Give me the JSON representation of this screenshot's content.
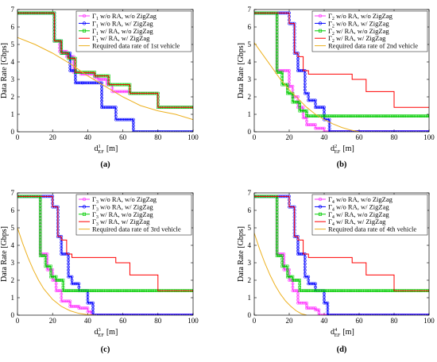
{
  "chart_data": [
    {
      "type": "line",
      "caption": "(a)",
      "xlabel_main": "d",
      "xlabel_sup": "1",
      "xlabel_sub": "EF",
      "xlabel_unit": "[m]",
      "ylabel": "Data Rate [Gbps]",
      "xlim": [
        0,
        100
      ],
      "ylim": [
        0,
        7
      ],
      "xticks": [
        0,
        20,
        40,
        60,
        80,
        100
      ],
      "yticks": [
        0,
        1,
        2,
        3,
        4,
        5,
        6,
        7
      ],
      "legend_position": "top-right",
      "series": [
        {
          "name": "Γ1 w/o RA, w/o ZigZag",
          "legend_base": "Γ",
          "legend_sub": "1",
          "legend_rest": " w/o RA, w/o ZigZag",
          "color": "#ff33ff",
          "marker": "circle",
          "x": [
            0,
            21,
            21,
            24,
            24,
            28,
            28,
            32,
            32,
            36,
            36,
            44,
            44,
            46,
            46,
            51,
            51,
            54,
            54,
            64,
            64,
            80,
            80,
            100
          ],
          "y": [
            6.8,
            6.8,
            5.2,
            5.2,
            4.6,
            4.6,
            4.3,
            4.3,
            3.4,
            3.4,
            3.3,
            3.3,
            3.1,
            3.1,
            3.0,
            3.0,
            2.7,
            2.7,
            2.3,
            2.3,
            2.2,
            2.2,
            1.4,
            1.4
          ]
        },
        {
          "name": "Γ1 w/o RA, w/ ZigZag",
          "legend_base": "Γ",
          "legend_sub": "1",
          "legend_rest": " w/o RA, w/ ZigZag",
          "color": "#0000ff",
          "marker": "circle",
          "x": [
            0,
            21,
            21,
            25,
            25,
            30,
            30,
            33,
            33,
            37,
            37,
            48,
            48,
            56,
            56,
            66,
            66,
            100
          ],
          "y": [
            6.8,
            6.8,
            5.2,
            5.2,
            4.5,
            4.5,
            3.5,
            3.5,
            2.8,
            2.8,
            2.8,
            2.8,
            1.4,
            1.4,
            0.7,
            0.7,
            0,
            0
          ]
        },
        {
          "name": "Γ1 w/ RA, w/o ZigZag",
          "legend_base": "Γ",
          "legend_sub": "1",
          "legend_rest": " w/ RA, w/o ZigZag",
          "color": "#00cc00",
          "marker": "square",
          "x": [
            0,
            21,
            21,
            25,
            25,
            29,
            29,
            33,
            33,
            44,
            44,
            52,
            52,
            64,
            64,
            80,
            80,
            100
          ],
          "y": [
            6.8,
            6.8,
            5.2,
            5.2,
            4.5,
            4.5,
            4.2,
            4.2,
            3.4,
            3.4,
            3.2,
            3.2,
            2.7,
            2.7,
            2.2,
            2.2,
            1.4,
            1.4
          ]
        },
        {
          "name": "Γ1 w/ RA, w/ ZigZag",
          "legend_base": "Γ",
          "legend_sub": "1",
          "legend_rest": " w/ RA, w/ ZigZag",
          "color": "#ff0000",
          "marker": "none",
          "x": [
            0,
            21,
            21,
            25,
            25,
            29,
            29,
            33,
            33,
            44,
            44,
            52,
            52,
            64,
            64,
            80,
            80,
            100
          ],
          "y": [
            6.8,
            6.8,
            5.2,
            5.2,
            4.5,
            4.5,
            4.2,
            4.2,
            3.4,
            3.4,
            3.2,
            3.2,
            2.7,
            2.7,
            2.2,
            2.2,
            1.4,
            1.4
          ]
        },
        {
          "name": "Required data rate of 1st vehicle",
          "legend_base": "Required data rate of 1st vehicle",
          "legend_sub": "",
          "legend_rest": "",
          "color": "#edb120",
          "marker": "none",
          "x": [
            0,
            10,
            20,
            30,
            40,
            50,
            60,
            70,
            80,
            90,
            100
          ],
          "y": [
            5.4,
            5.0,
            4.5,
            3.9,
            3.2,
            2.6,
            2.0,
            1.5,
            1.2,
            1.0,
            0.7
          ]
        }
      ]
    },
    {
      "type": "line",
      "caption": "(b)",
      "xlabel_main": "d",
      "xlabel_sup": "2",
      "xlabel_sub": "EF",
      "xlabel_unit": "[m]",
      "ylabel": "Data Rate [Gbps]",
      "xlim": [
        0,
        100
      ],
      "ylim": [
        0,
        7
      ],
      "xticks": [
        0,
        20,
        40,
        60,
        80,
        100
      ],
      "yticks": [
        0,
        1,
        2,
        3,
        4,
        5,
        6,
        7
      ],
      "legend_position": "top-right",
      "series": [
        {
          "name": "Γ2 w/o RA, w/o ZigZag",
          "legend_base": "Γ",
          "legend_sub": "2",
          "legend_rest": " w/o RA, w/o ZigZag",
          "color": "#ff33ff",
          "marker": "circle",
          "x": [
            0,
            13,
            13,
            20,
            20,
            22,
            22,
            25,
            25,
            28,
            28,
            30,
            30,
            35,
            35,
            40,
            40,
            100
          ],
          "y": [
            6.8,
            6.8,
            3.5,
            3.5,
            2.6,
            2.6,
            2.0,
            2.0,
            1.4,
            1.4,
            0.8,
            0.8,
            0.4,
            0.4,
            0.2,
            0.2,
            0,
            0
          ]
        },
        {
          "name": "Γ2 w/o RA, w/ ZigZag",
          "legend_base": "Γ",
          "legend_sub": "2",
          "legend_rest": " w/o RA, w/ ZigZag",
          "color": "#0000ff",
          "marker": "circle",
          "x": [
            0,
            20,
            20,
            23,
            23,
            25,
            25,
            29,
            29,
            31,
            31,
            35,
            35,
            40,
            40,
            43,
            43,
            100
          ],
          "y": [
            6.8,
            6.8,
            6.2,
            6.2,
            4.5,
            4.5,
            3.5,
            3.5,
            2.2,
            2.2,
            1.8,
            1.8,
            1.4,
            1.4,
            0.7,
            0.7,
            0,
            0
          ]
        },
        {
          "name": "Γ2 w/ RA, w/o ZigZag",
          "legend_base": "Γ",
          "legend_sub": "2",
          "legend_rest": " w/ RA, w/o ZigZag",
          "color": "#00cc00",
          "marker": "square",
          "x": [
            0,
            13,
            13,
            16,
            16,
            19,
            19,
            22,
            22,
            26,
            26,
            30,
            30,
            100
          ],
          "y": [
            6.8,
            6.8,
            3.4,
            3.4,
            2.7,
            2.7,
            2.2,
            2.2,
            1.7,
            1.7,
            1.2,
            1.2,
            0.9,
            0.9
          ]
        },
        {
          "name": "Γ2 w/ RA, w/ ZigZag",
          "legend_base": "Γ",
          "legend_sub": "2",
          "legend_rest": " w/ RA, w/ ZigZag",
          "color": "#ff0000",
          "marker": "none",
          "x": [
            0,
            20,
            20,
            23,
            23,
            25,
            25,
            28,
            28,
            31,
            31,
            56,
            56,
            64,
            64,
            80,
            80,
            100
          ],
          "y": [
            6.8,
            6.8,
            6.2,
            6.2,
            4.5,
            4.5,
            4.3,
            4.3,
            3.5,
            3.5,
            3.3,
            3.3,
            3.0,
            3.0,
            2.3,
            2.3,
            1.4,
            1.4
          ]
        },
        {
          "name": "Required data rate of 2nd vehicle",
          "legend_base": "Required data rate of 2nd vehicle",
          "legend_sub": "",
          "legend_rest": "",
          "color": "#edb120",
          "marker": "none",
          "x": [
            0,
            5,
            10,
            15,
            20,
            25,
            30,
            35,
            40,
            45,
            50,
            55,
            60
          ],
          "y": [
            5.1,
            4.4,
            3.7,
            3.0,
            2.4,
            1.9,
            1.4,
            1.0,
            0.7,
            0.45,
            0.25,
            0.1,
            0
          ]
        }
      ]
    },
    {
      "type": "line",
      "caption": "(c)",
      "xlabel_main": "d",
      "xlabel_sup": "3",
      "xlabel_sub": "EF",
      "xlabel_unit": "[m]",
      "ylabel": "Data Rate [Gbps]",
      "xlim": [
        0,
        100
      ],
      "ylim": [
        0,
        7
      ],
      "xticks": [
        0,
        20,
        40,
        60,
        80,
        100
      ],
      "yticks": [
        0,
        1,
        2,
        3,
        4,
        5,
        6,
        7
      ],
      "legend_position": "top-right",
      "series": [
        {
          "name": "Γ3 w/o RA, w/o ZigZag",
          "legend_base": "Γ",
          "legend_sub": "3",
          "legend_rest": " w/o RA, w/o ZigZag",
          "color": "#ff33ff",
          "marker": "circle",
          "x": [
            0,
            13,
            13,
            17,
            17,
            20,
            20,
            22,
            22,
            25,
            25,
            30,
            30,
            35,
            35,
            40,
            40,
            42,
            42,
            100
          ],
          "y": [
            6.8,
            6.8,
            3.5,
            3.5,
            2.6,
            2.6,
            2.0,
            2.0,
            1.4,
            1.4,
            0.8,
            0.8,
            0.5,
            0.5,
            0.4,
            0.4,
            0.2,
            0.2,
            0,
            0
          ]
        },
        {
          "name": "Γ3 w/o RA, w/ ZigZag",
          "legend_base": "Γ",
          "legend_sub": "3",
          "legend_rest": " w/o RA, w/ ZigZag",
          "color": "#0000ff",
          "marker": "circle",
          "x": [
            0,
            20,
            20,
            23,
            23,
            25,
            25,
            29,
            29,
            31,
            31,
            35,
            35,
            40,
            40,
            43,
            43,
            100
          ],
          "y": [
            6.8,
            6.8,
            6.2,
            6.2,
            4.5,
            4.5,
            3.5,
            3.5,
            2.2,
            2.2,
            1.8,
            1.8,
            1.4,
            1.4,
            0.7,
            0.7,
            0,
            0
          ]
        },
        {
          "name": "Γ3 w/ RA, w/o ZigZag",
          "legend_base": "Γ",
          "legend_sub": "3",
          "legend_rest": " w/ RA, w/o ZigZag",
          "color": "#00cc00",
          "marker": "square",
          "x": [
            0,
            13,
            13,
            16,
            16,
            19,
            19,
            22,
            22,
            26,
            26,
            100
          ],
          "y": [
            6.8,
            6.8,
            3.4,
            3.4,
            2.8,
            2.8,
            2.2,
            2.2,
            2.0,
            2.0,
            1.4,
            1.4
          ]
        },
        {
          "name": "Γ3 w/ RA, w/ ZigZag",
          "legend_base": "Γ",
          "legend_sub": "3",
          "legend_rest": " w/ RA, w/ ZigZag",
          "color": "#ff0000",
          "marker": "none",
          "x": [
            0,
            20,
            20,
            23,
            23,
            25,
            25,
            28,
            28,
            31,
            31,
            56,
            56,
            64,
            64,
            80,
            80,
            100
          ],
          "y": [
            6.8,
            6.8,
            6.2,
            6.2,
            4.5,
            4.5,
            4.3,
            4.3,
            3.5,
            3.5,
            3.3,
            3.3,
            3.0,
            3.0,
            2.3,
            2.3,
            1.4,
            1.4
          ]
        },
        {
          "name": "Required data rate of 3rd vehicle",
          "legend_base": "Required data rate of 3rd vehicle",
          "legend_sub": "",
          "legend_rest": "",
          "color": "#edb120",
          "marker": "none",
          "x": [
            0,
            3,
            6,
            9,
            12,
            15,
            20,
            25,
            30,
            35,
            40,
            45
          ],
          "y": [
            5.0,
            4.1,
            3.3,
            2.6,
            2.0,
            1.5,
            0.9,
            0.5,
            0.25,
            0.1,
            0.03,
            0
          ]
        }
      ]
    },
    {
      "type": "line",
      "caption": "(d)",
      "xlabel_main": "d",
      "xlabel_sup": "4",
      "xlabel_sub": "EF",
      "xlabel_unit": "[m]",
      "ylabel": "Data Rate [Gbps]",
      "xlim": [
        0,
        100
      ],
      "ylim": [
        0,
        7
      ],
      "xticks": [
        0,
        20,
        40,
        60,
        80,
        100
      ],
      "yticks": [
        0,
        1,
        2,
        3,
        4,
        5,
        6,
        7
      ],
      "legend_position": "top-right",
      "series": [
        {
          "name": "Γ4 w/o RA, w/o ZigZag",
          "legend_base": "Γ",
          "legend_sub": "4",
          "legend_rest": " w/o RA, w/o ZigZag",
          "color": "#ff33ff",
          "marker": "circle",
          "x": [
            0,
            13,
            13,
            17,
            17,
            20,
            20,
            22,
            22,
            25,
            25,
            30,
            30,
            35,
            35,
            37,
            37,
            100
          ],
          "y": [
            6.8,
            6.8,
            3.5,
            3.5,
            2.6,
            2.6,
            2.0,
            2.0,
            1.4,
            1.4,
            0.7,
            0.7,
            0.4,
            0.4,
            0.3,
            0.3,
            0,
            0
          ]
        },
        {
          "name": "Γ4 w/o RA, w/ ZigZag",
          "legend_base": "Γ",
          "legend_sub": "4",
          "legend_rest": " w/o RA, w/ ZigZag",
          "color": "#0000ff",
          "marker": "circle",
          "x": [
            0,
            20,
            20,
            23,
            23,
            25,
            25,
            29,
            29,
            31,
            31,
            35,
            35,
            40,
            40,
            42,
            42,
            100
          ],
          "y": [
            6.8,
            6.8,
            6.2,
            6.2,
            4.5,
            4.5,
            3.5,
            3.5,
            2.2,
            2.2,
            1.8,
            1.8,
            1.4,
            1.4,
            0.7,
            0.7,
            0,
            0
          ]
        },
        {
          "name": "Γ4 w/ RA, w/o ZigZag",
          "legend_base": "Γ",
          "legend_sub": "4",
          "legend_rest": " w/ RA, w/o ZigZag",
          "color": "#00cc00",
          "marker": "square",
          "x": [
            0,
            13,
            13,
            16,
            16,
            19,
            19,
            22,
            22,
            26,
            26,
            100
          ],
          "y": [
            6.8,
            6.8,
            3.4,
            3.4,
            2.8,
            2.8,
            2.2,
            2.2,
            2.0,
            2.0,
            1.4,
            1.4
          ]
        },
        {
          "name": "Γ4 w/ RA, w/ ZigZag",
          "legend_base": "Γ",
          "legend_sub": "4",
          "legend_rest": " w/ RA, w/ ZigZag",
          "color": "#ff0000",
          "marker": "none",
          "x": [
            0,
            20,
            20,
            23,
            23,
            25,
            25,
            28,
            28,
            31,
            31,
            56,
            56,
            64,
            64,
            80,
            80,
            100
          ],
          "y": [
            6.8,
            6.8,
            6.2,
            6.2,
            4.5,
            4.5,
            4.3,
            4.3,
            3.5,
            3.5,
            3.3,
            3.3,
            3.0,
            3.0,
            2.3,
            2.3,
            1.4,
            1.4
          ]
        },
        {
          "name": "Required data rate of 4th vehicle",
          "legend_base": "Required data rate of 4th vehicle",
          "legend_sub": "",
          "legend_rest": "",
          "color": "#edb120",
          "marker": "none",
          "x": [
            0,
            3,
            6,
            9,
            12,
            15,
            18,
            21,
            24,
            27,
            30
          ],
          "y": [
            4.7,
            3.8,
            3.0,
            2.3,
            1.7,
            1.2,
            0.8,
            0.5,
            0.25,
            0.08,
            0
          ]
        }
      ]
    }
  ]
}
